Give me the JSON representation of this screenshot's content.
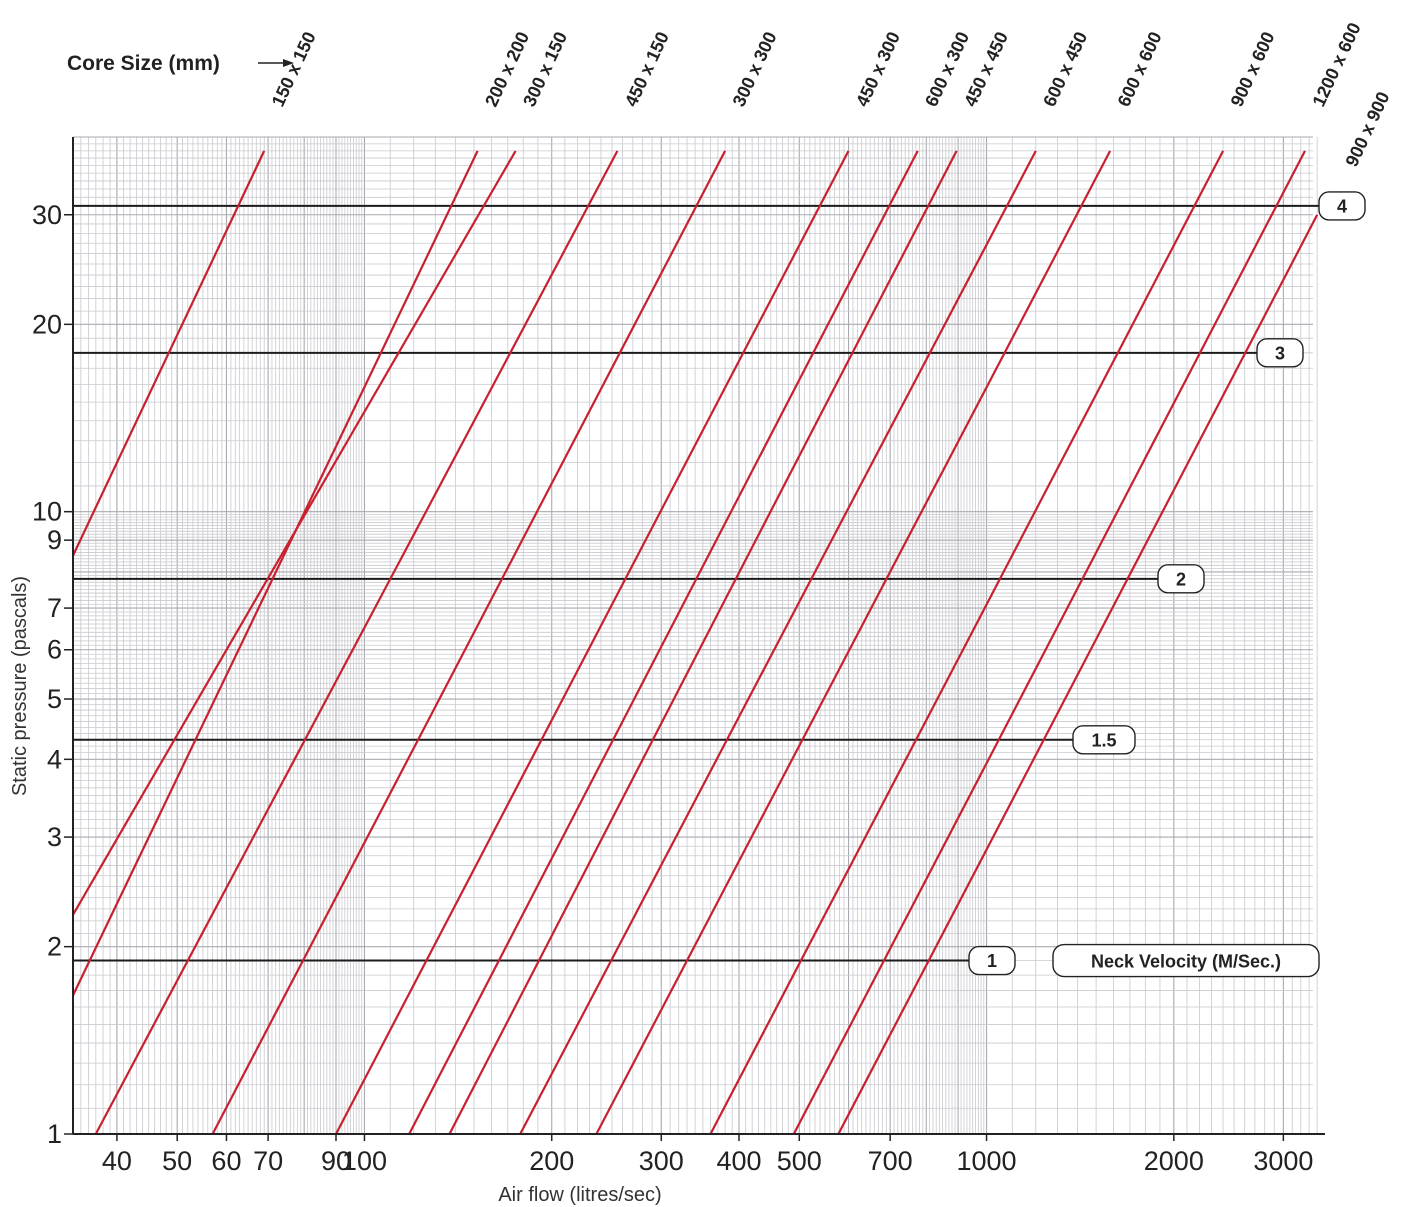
{
  "chart_data": {
    "type": "line",
    "xlabel": "Air flow (litres/sec)",
    "ylabel": "Static pressure (pascals)",
    "x_scale": "log",
    "y_scale": "log",
    "xlim": [
      34,
      3500
    ],
    "ylim": [
      1,
      40
    ],
    "grid": true,
    "x_ticks": [
      {
        "value": 40,
        "label": "40"
      },
      {
        "value": 50,
        "label": "50"
      },
      {
        "value": 60,
        "label": "60"
      },
      {
        "value": 70,
        "label": "70"
      },
      {
        "value": 90,
        "label": "90"
      },
      {
        "value": 100,
        "label": "100"
      },
      {
        "value": 200,
        "label": "200"
      },
      {
        "value": 300,
        "label": "300"
      },
      {
        "value": 400,
        "label": "400"
      },
      {
        "value": 500,
        "label": "500"
      },
      {
        "value": 700,
        "label": "700"
      },
      {
        "value": 1000,
        "label": "1000"
      },
      {
        "value": 2000,
        "label": "2000"
      },
      {
        "value": 3000,
        "label": "3000"
      }
    ],
    "y_ticks": [
      {
        "value": 1,
        "label": "1"
      },
      {
        "value": 2,
        "label": "2"
      },
      {
        "value": 3,
        "label": "3"
      },
      {
        "value": 4,
        "label": "4"
      },
      {
        "value": 5,
        "label": "5"
      },
      {
        "value": 6,
        "label": "6"
      },
      {
        "value": 7,
        "label": "7"
      },
      {
        "value": 9,
        "label": "9"
      },
      {
        "value": 10,
        "label": "10"
      },
      {
        "value": 20,
        "label": "20"
      },
      {
        "value": 30,
        "label": "30"
      }
    ],
    "core_size_title": "Core Size (mm)",
    "series": [
      {
        "name": "150 x 150",
        "color": "#c8202e",
        "points": [
          [
            34,
            8.5
          ],
          [
            69,
            38
          ]
        ]
      },
      {
        "name": "200 x 200",
        "color": "#c8202e",
        "points": [
          [
            34,
            1.67
          ],
          [
            152,
            38
          ]
        ]
      },
      {
        "name": "300 x 150",
        "color": "#c8202e",
        "points": [
          [
            34,
            2.25
          ],
          [
            175,
            38
          ]
        ]
      },
      {
        "name": "450 x 150",
        "color": "#c8202e",
        "points": [
          [
            37,
            1
          ],
          [
            255,
            38
          ]
        ]
      },
      {
        "name": "300 x 300",
        "color": "#c8202e",
        "points": [
          [
            57,
            1
          ],
          [
            380,
            38
          ]
        ]
      },
      {
        "name": "450 x 300",
        "color": "#c8202e",
        "points": [
          [
            90,
            1
          ],
          [
            600,
            38
          ]
        ]
      },
      {
        "name": "600 x 300",
        "color": "#c8202e",
        "points": [
          [
            118,
            1
          ],
          [
            775,
            38
          ]
        ]
      },
      {
        "name": "450 x 450",
        "color": "#c8202e",
        "points": [
          [
            137,
            1
          ],
          [
            895,
            38
          ]
        ]
      },
      {
        "name": "600 x 450",
        "color": "#c8202e",
        "points": [
          [
            178,
            1
          ],
          [
            1200,
            38
          ]
        ]
      },
      {
        "name": "600 x 600",
        "color": "#c8202e",
        "points": [
          [
            236,
            1
          ],
          [
            1580,
            38
          ]
        ]
      },
      {
        "name": "900 x 600",
        "color": "#c8202e",
        "points": [
          [
            360,
            1
          ],
          [
            2400,
            38
          ]
        ]
      },
      {
        "name": "1200 x 600",
        "color": "#c8202e",
        "points": [
          [
            490,
            1
          ],
          [
            3250,
            38
          ]
        ]
      },
      {
        "name": "900 x 900",
        "color": "#c8202e",
        "points": [
          [
            578,
            1
          ],
          [
            3400,
            30
          ]
        ]
      }
    ],
    "neck_velocity": {
      "title": "Neck Velocity (M/Sec.)",
      "lines": [
        {
          "label": "1",
          "pressure": 1.9
        },
        {
          "label": "1.5",
          "pressure": 4.3
        },
        {
          "label": "2",
          "pressure": 7.8
        },
        {
          "label": "3",
          "pressure": 18
        },
        {
          "label": "4",
          "pressure": 31
        }
      ]
    }
  }
}
